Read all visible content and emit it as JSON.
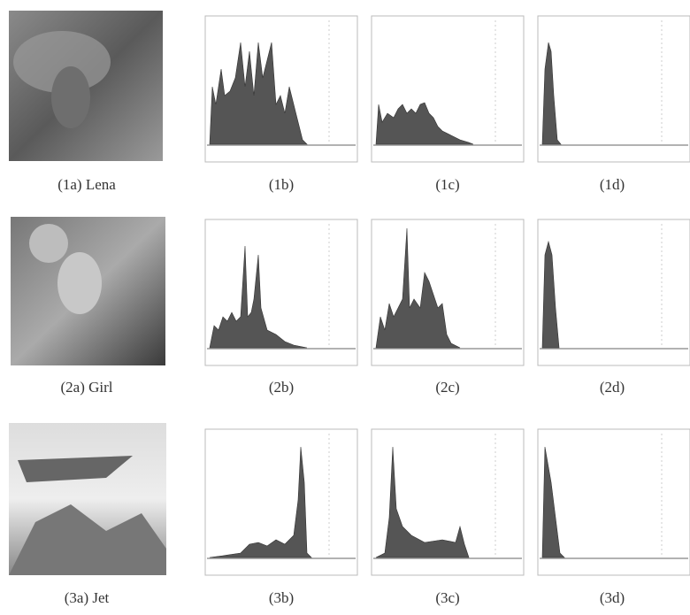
{
  "figure": {
    "rows": [
      {
        "captions": [
          "(1a) Lena",
          "(1b)",
          "(1c)",
          "(1d)"
        ]
      },
      {
        "captions": [
          "(2a) Girl",
          "(2b)",
          "(2c)",
          "(2d)"
        ]
      },
      {
        "captions": [
          "(3a) Jet",
          "(3b)",
          "(3c)",
          "(3d)"
        ]
      }
    ]
  }
}
